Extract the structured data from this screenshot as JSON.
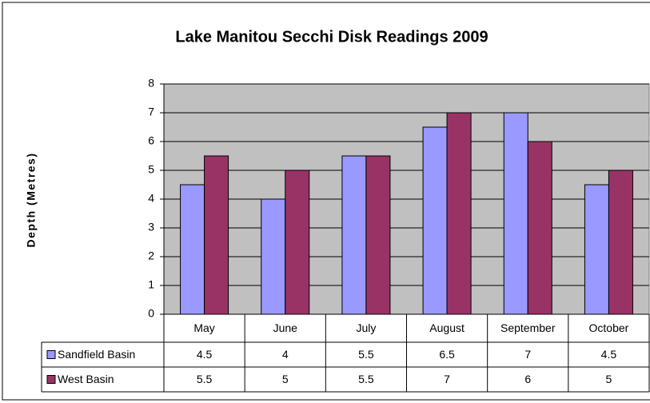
{
  "chart_data": {
    "type": "bar",
    "title": "Lake Manitou Secchi Disk Readings 2009",
    "y_label": "Depth (Metres)",
    "categories": [
      "May",
      "June",
      "July",
      "August",
      "September",
      "October"
    ],
    "series": [
      {
        "name": "Sandfield Basin",
        "color": "#9999ff",
        "values": [
          4.5,
          4,
          5.5,
          6.5,
          7,
          4.5
        ]
      },
      {
        "name": "West Basin",
        "color": "#993366",
        "values": [
          5.5,
          5,
          5.5,
          7,
          6,
          5
        ]
      }
    ],
    "ylim": [
      0,
      8
    ],
    "yticks": [
      0,
      1,
      2,
      3,
      4,
      5,
      6,
      7,
      8
    ],
    "grid": true,
    "plot_background": "#c0c0c0"
  }
}
